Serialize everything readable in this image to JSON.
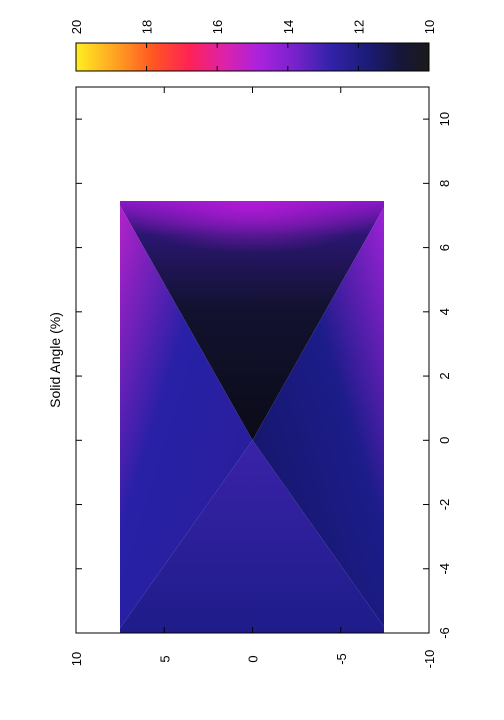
{
  "chart_data": {
    "type": "heatmap",
    "title": "",
    "orientation": "rotated 90 degrees counter-clockwise",
    "axis_label": "Solid Angle (%)",
    "x_axis": {
      "label": "",
      "range": [
        -10,
        10
      ],
      "ticks": [
        10,
        5,
        0,
        -5,
        -10
      ],
      "tick_labels": [
        "10",
        "5",
        "0",
        "-5",
        "-10"
      ]
    },
    "y_axis": {
      "label": "Solid Angle (%)",
      "range": [
        -6,
        11
      ],
      "ticks": [
        -6,
        -4,
        -2,
        0,
        2,
        4,
        6,
        8,
        10
      ],
      "tick_labels": [
        "-6",
        "-4",
        "-2",
        "0",
        "2",
        "4",
        "6",
        "8",
        "10"
      ]
    },
    "data_extent": {
      "x": [
        -7.7,
        7.7
      ],
      "y": [
        -6,
        7.5
      ]
    },
    "colorbar": {
      "range": [
        10,
        20
      ],
      "ticks": [
        10,
        12,
        14,
        16,
        18,
        20
      ],
      "tick_labels": [
        "10",
        "12",
        "14",
        "16",
        "18",
        "20"
      ],
      "palette": [
        "#1a1a1a",
        "#16163a",
        "#1c1c7a",
        "#3322aa",
        "#7722cc",
        "#aa22dd",
        "#dd22aa",
        "#ff2255",
        "#ff5522",
        "#ffaa22",
        "#ffee22"
      ]
    },
    "pattern": "Two crossing diagonal dark bands forming an X centred at (0, 0); values rise toward the outer corners and toward the top edge (upper region near 15-16 at the corners and top centre), minimum near 10 in the dark upper wedge",
    "grid": false,
    "legend": "colorbar at top"
  }
}
